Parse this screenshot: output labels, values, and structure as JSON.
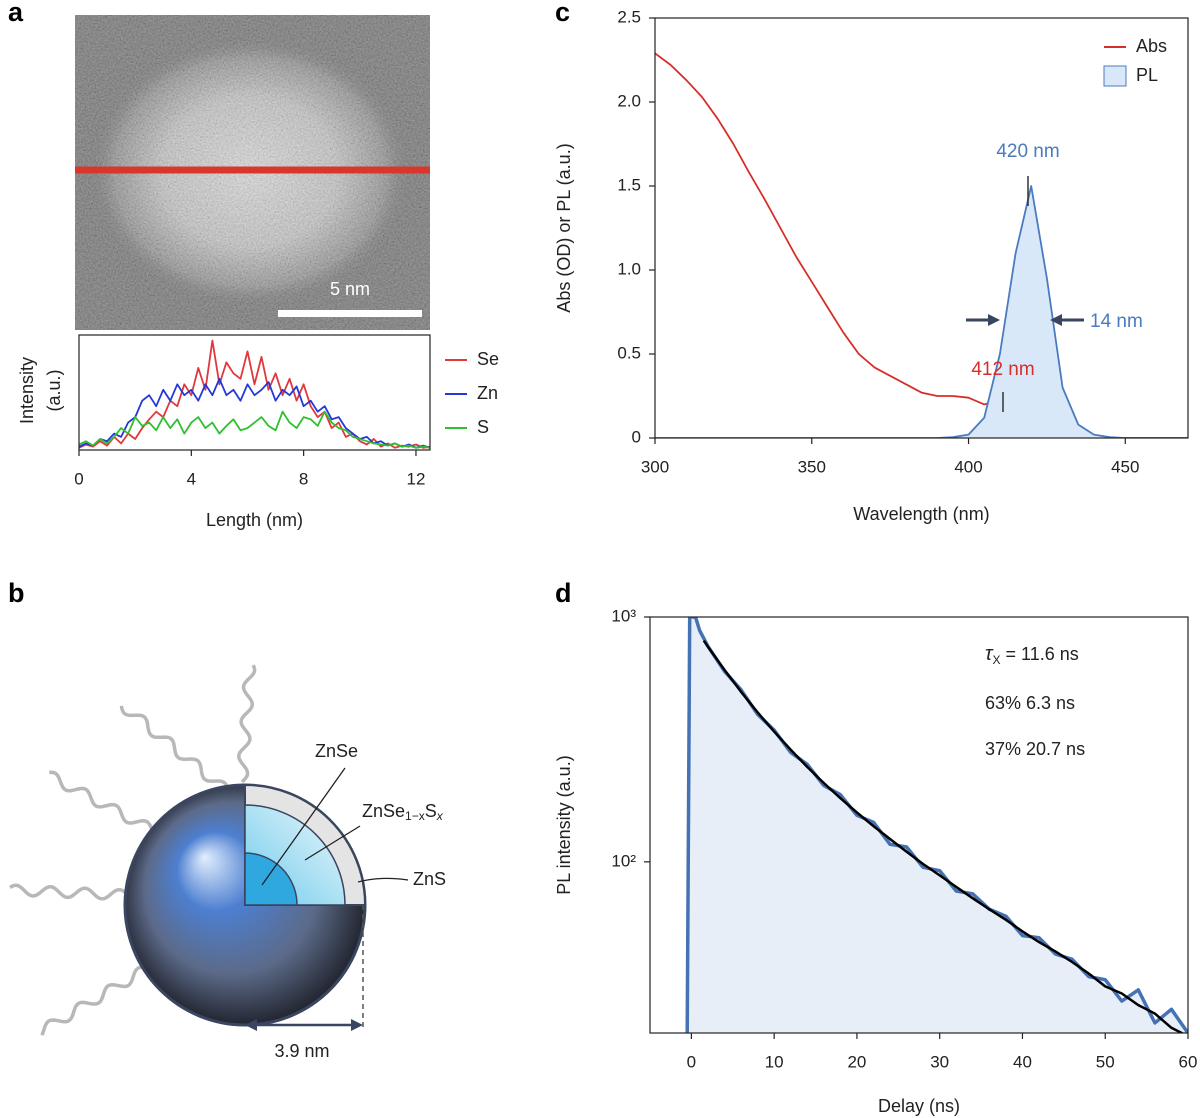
{
  "panel_labels": [
    "a",
    "b",
    "c",
    "d"
  ],
  "image": {
    "scale_bar": "5 nm"
  },
  "diagram": {
    "core": "ZnSe",
    "shell_base": "ZnSe",
    "shell_sub1": "1−x",
    "shell_S": "S",
    "shell_sub2": "x",
    "outer": "ZnS",
    "dimension": "3.9 nm"
  },
  "chart_data": [
    {
      "type": "line",
      "xlabel": "Length (nm)",
      "ylabel": [
        "Intensity",
        "(a.u.)"
      ],
      "xlim": [
        0,
        12.5
      ],
      "ylim": [
        0,
        1.05
      ],
      "xticks": [
        0,
        4,
        8,
        12
      ],
      "legend": "right",
      "x": [
        0,
        0.25,
        0.5,
        0.75,
        1,
        1.25,
        1.5,
        1.75,
        2,
        2.25,
        2.5,
        2.75,
        3,
        3.25,
        3.5,
        3.75,
        4,
        4.25,
        4.5,
        4.75,
        5,
        5.25,
        5.5,
        5.75,
        6,
        6.25,
        6.5,
        6.75,
        7,
        7.25,
        7.5,
        7.75,
        8,
        8.25,
        8.5,
        8.75,
        9,
        9.25,
        9.5,
        9.75,
        10,
        10.25,
        10.5,
        10.75,
        11,
        11.25,
        11.5,
        11.75,
        12,
        12.25,
        12.5
      ],
      "series": [
        {
          "name": "Se",
          "color": "#e0383c",
          "values": [
            0.02,
            0.05,
            0.03,
            0.08,
            0.04,
            0.12,
            0.06,
            0.15,
            0.1,
            0.2,
            0.28,
            0.35,
            0.3,
            0.45,
            0.4,
            0.6,
            0.5,
            0.75,
            0.55,
            1.0,
            0.6,
            0.8,
            0.7,
            0.65,
            0.9,
            0.6,
            0.85,
            0.55,
            0.7,
            0.5,
            0.65,
            0.45,
            0.6,
            0.4,
            0.3,
            0.35,
            0.2,
            0.25,
            0.12,
            0.15,
            0.08,
            0.05,
            0.1,
            0.03,
            0.06,
            0.02,
            0.04,
            0.03,
            0.05,
            0.02,
            0.03
          ]
        },
        {
          "name": "Zn",
          "color": "#2238d8",
          "values": [
            0.03,
            0.06,
            0.04,
            0.1,
            0.08,
            0.15,
            0.12,
            0.25,
            0.3,
            0.45,
            0.5,
            0.4,
            0.55,
            0.45,
            0.6,
            0.5,
            0.55,
            0.45,
            0.6,
            0.5,
            0.65,
            0.5,
            0.55,
            0.45,
            0.6,
            0.5,
            0.55,
            0.62,
            0.45,
            0.55,
            0.5,
            0.58,
            0.4,
            0.45,
            0.35,
            0.4,
            0.28,
            0.3,
            0.2,
            0.15,
            0.1,
            0.12,
            0.06,
            0.08,
            0.04,
            0.06,
            0.03,
            0.05,
            0.02,
            0.04,
            0.02
          ]
        },
        {
          "name": "S",
          "color": "#2fc02f",
          "values": [
            0.05,
            0.08,
            0.04,
            0.1,
            0.06,
            0.12,
            0.2,
            0.15,
            0.3,
            0.22,
            0.25,
            0.18,
            0.3,
            0.2,
            0.28,
            0.15,
            0.25,
            0.3,
            0.2,
            0.25,
            0.15,
            0.22,
            0.28,
            0.18,
            0.2,
            0.25,
            0.3,
            0.22,
            0.18,
            0.35,
            0.25,
            0.2,
            0.3,
            0.28,
            0.22,
            0.35,
            0.25,
            0.2,
            0.18,
            0.12,
            0.1,
            0.08,
            0.06,
            0.05,
            0.04,
            0.06,
            0.03,
            0.04,
            0.02,
            0.03,
            0.02
          ]
        }
      ]
    },
    {
      "type": "line",
      "xlabel": "Wavelength (nm)",
      "ylabel": "Abs (OD) or PL (a.u.)",
      "xlim": [
        300,
        470
      ],
      "ylim": [
        0,
        2.5
      ],
      "xticks": [
        300,
        350,
        400,
        450
      ],
      "yticks": [
        0,
        0.5,
        {
          "value": 1,
          "label": "1.0"
        },
        1.5,
        {
          "value": 2,
          "label": "2.0"
        },
        2.5
      ],
      "legend": "upper right",
      "x": [
        300,
        305,
        310,
        315,
        320,
        325,
        330,
        335,
        340,
        345,
        350,
        355,
        360,
        365,
        370,
        375,
        380,
        385,
        390,
        395,
        400,
        405,
        410,
        415,
        420,
        425,
        430,
        435,
        440,
        445,
        450,
        455,
        460,
        465,
        470
      ],
      "series": [
        {
          "name": "Abs",
          "color": "#d62f2a",
          "values": [
            2.29,
            2.22,
            2.13,
            2.03,
            1.9,
            1.75,
            1.58,
            1.42,
            1.25,
            1.08,
            0.93,
            0.78,
            0.63,
            0.5,
            0.42,
            0.37,
            0.32,
            0.27,
            0.25,
            0.25,
            0.24,
            0.2,
            0.22,
            0.16,
            0.07,
            0.03,
            0.01,
            0.005,
            0,
            0,
            0,
            0,
            0,
            0,
            0
          ]
        },
        {
          "name": "PL",
          "color": "#4a7bbf",
          "fill": "#d9e8f8",
          "values": [
            0,
            0,
            0,
            0,
            0,
            0,
            0,
            0,
            0,
            0,
            0,
            0,
            0,
            0,
            0,
            0,
            0,
            0,
            0,
            0.005,
            0.02,
            0.12,
            0.5,
            1.1,
            1.5,
            0.95,
            0.3,
            0.08,
            0.02,
            0.005,
            0,
            0,
            0,
            0,
            0
          ]
        }
      ],
      "annotations": [
        {
          "text": "420 nm",
          "color": "#4a7bbf"
        },
        {
          "text": "14 nm",
          "color": "#4a7bbf"
        },
        {
          "text": "412 nm",
          "color": "#d62f2a"
        }
      ]
    },
    {
      "type": "line",
      "xlabel": "Delay (ns)",
      "ylabel": "PL intensity (a.u.)",
      "log_y": true,
      "xlim": [
        -5,
        60
      ],
      "ylim": [
        20,
        1000
      ],
      "xticks": [
        0,
        10,
        20,
        30,
        40,
        50,
        60
      ],
      "yticks": [
        {
          "value": 100,
          "label": "10²"
        },
        {
          "value": 1000,
          "label": "10³"
        }
      ],
      "series": [
        {
          "color": "#4472b4",
          "fill": "#e8eef8",
          "x": [
            -0.5,
            -0.2,
            0,
            0.5,
            1,
            2,
            4,
            6,
            8,
            10,
            12,
            14,
            16,
            18,
            20,
            22,
            24,
            26,
            28,
            30,
            32,
            34,
            36,
            38,
            40,
            42,
            44,
            46,
            48,
            50,
            52,
            54,
            56,
            58,
            60
          ],
          "values": [
            20,
            1000,
            1000,
            1000,
            880,
            760,
            600,
            505,
            400,
            345,
            280,
            250,
            205,
            188,
            155,
            145,
            118,
            115,
            95,
            92,
            76,
            74,
            64,
            60,
            50,
            49,
            42,
            40,
            34,
            33,
            27,
            30,
            22,
            25,
            20
          ]
        },
        {
          "color": "#000000",
          "x": [
            1.5,
            2,
            4,
            6,
            8,
            10,
            12,
            14,
            16,
            18,
            20,
            22,
            24,
            26,
            28,
            30,
            32,
            34,
            36,
            38,
            40,
            42,
            44,
            46,
            48,
            50,
            52,
            54,
            56,
            58,
            60
          ],
          "values": [
            800,
            756,
            608,
            495,
            408,
            340,
            287,
            244,
            210,
            182,
            159,
            140,
            124,
            110,
            98,
            88,
            79,
            71,
            64,
            58,
            52,
            47,
            43,
            39,
            35,
            31,
            29,
            26,
            24,
            21,
            19.4
          ]
        }
      ],
      "tau": {
        "symbol": "τ",
        "subscript": "X",
        "value": " = 11.6 ns"
      },
      "annotations": [
        "63% 6.3 ns",
        "37% 20.7 ns"
      ]
    }
  ]
}
